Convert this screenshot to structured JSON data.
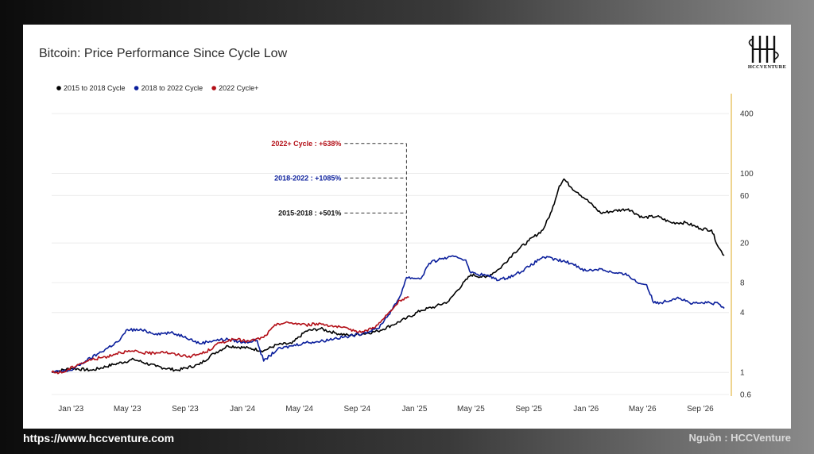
{
  "chart_data": {
    "type": "line",
    "title": "Bitcoin: Price Performance Since Cycle Low",
    "y_scale": "log",
    "ylim": [
      0.6,
      600
    ],
    "y_ticks": [
      {
        "value": 0.6,
        "label": "0.6"
      },
      {
        "value": 1,
        "label": "1"
      },
      {
        "value": 4,
        "label": "4"
      },
      {
        "value": 8,
        "label": "8"
      },
      {
        "value": 20,
        "label": "20"
      },
      {
        "value": 60,
        "label": "60"
      },
      {
        "value": 100,
        "label": "100"
      },
      {
        "value": 400,
        "label": "400"
      }
    ],
    "xlim": [
      "2022-11-21",
      "2026-11-01"
    ],
    "x_ticks": [
      "Jan '23",
      "May '23",
      "Sep '23",
      "Jan '24",
      "May '24",
      "Sep '24",
      "Jan '25",
      "May '25",
      "Sep '25",
      "Jan '26",
      "May '26",
      "Sep '26"
    ],
    "x_tick_dates": [
      "2023-01-01",
      "2023-05-01",
      "2023-09-01",
      "2024-01-01",
      "2024-05-01",
      "2024-09-01",
      "2025-01-01",
      "2025-05-01",
      "2025-09-01",
      "2026-01-01",
      "2026-05-01",
      "2026-09-01"
    ],
    "grid": true,
    "legend_position": "top-left",
    "series": [
      {
        "name": "2015 to 2018 Cycle",
        "color": "#000000",
        "points": [
          [
            "2022-11-21",
            1.0
          ],
          [
            "2023-01-01",
            1.1
          ],
          [
            "2023-02-15",
            1.05
          ],
          [
            "2023-04-01",
            1.2
          ],
          [
            "2023-05-15",
            1.35
          ],
          [
            "2023-07-01",
            1.15
          ],
          [
            "2023-08-15",
            1.05
          ],
          [
            "2023-10-01",
            1.2
          ],
          [
            "2023-11-01",
            1.55
          ],
          [
            "2023-12-01",
            1.85
          ],
          [
            "2024-01-15",
            1.75
          ],
          [
            "2024-02-15",
            1.65
          ],
          [
            "2024-03-15",
            1.9
          ],
          [
            "2024-04-15",
            1.95
          ],
          [
            "2024-05-15",
            2.6
          ],
          [
            "2024-06-15",
            2.75
          ],
          [
            "2024-07-15",
            2.5
          ],
          [
            "2024-08-15",
            2.35
          ],
          [
            "2024-09-15",
            2.45
          ],
          [
            "2024-10-15",
            2.6
          ],
          [
            "2024-11-15",
            3.0
          ],
          [
            "2024-12-15",
            3.5
          ],
          [
            "2025-01-15",
            4.2
          ],
          [
            "2025-02-15",
            4.6
          ],
          [
            "2025-03-15",
            5.2
          ],
          [
            "2025-04-01",
            6.6
          ],
          [
            "2025-05-01",
            9.6
          ],
          [
            "2025-06-01",
            9.0
          ],
          [
            "2025-07-01",
            11.0
          ],
          [
            "2025-08-01",
            16.0
          ],
          [
            "2025-09-01",
            21.0
          ],
          [
            "2025-10-01",
            27.0
          ],
          [
            "2025-10-20",
            42.0
          ],
          [
            "2025-11-05",
            75.0
          ],
          [
            "2025-11-15",
            88.0
          ],
          [
            "2025-12-01",
            72.0
          ],
          [
            "2025-12-15",
            64.0
          ],
          [
            "2026-01-01",
            55.0
          ],
          [
            "2026-02-01",
            40.0
          ],
          [
            "2026-03-01",
            42.0
          ],
          [
            "2026-04-01",
            44.0
          ],
          [
            "2026-05-01",
            36.0
          ],
          [
            "2026-06-01",
            37.0
          ],
          [
            "2026-07-01",
            32.0
          ],
          [
            "2026-08-01",
            32.0
          ],
          [
            "2026-09-01",
            28.0
          ],
          [
            "2026-09-25",
            27.0
          ],
          [
            "2026-10-10",
            18.0
          ],
          [
            "2026-10-22",
            15.0
          ]
        ]
      },
      {
        "name": "2018 to 2022 Cycle",
        "color": "#0b1f9c",
        "points": [
          [
            "2022-11-21",
            1.0
          ],
          [
            "2023-01-01",
            1.05
          ],
          [
            "2023-02-01",
            1.3
          ],
          [
            "2023-03-01",
            1.55
          ],
          [
            "2023-04-15",
            2.1
          ],
          [
            "2023-05-01",
            2.7
          ],
          [
            "2023-06-01",
            2.65
          ],
          [
            "2023-07-01",
            2.45
          ],
          [
            "2023-08-01",
            2.5
          ],
          [
            "2023-09-01",
            2.3
          ],
          [
            "2023-10-01",
            1.95
          ],
          [
            "2023-11-01",
            2.1
          ],
          [
            "2023-12-01",
            2.15
          ],
          [
            "2024-01-01",
            2.0
          ],
          [
            "2024-02-01",
            2.1
          ],
          [
            "2024-02-15",
            1.3
          ],
          [
            "2024-03-15",
            1.7
          ],
          [
            "2024-04-15",
            1.85
          ],
          [
            "2024-05-15",
            2.0
          ],
          [
            "2024-06-15",
            2.05
          ],
          [
            "2024-07-15",
            2.2
          ],
          [
            "2024-08-15",
            2.3
          ],
          [
            "2024-09-15",
            2.5
          ],
          [
            "2024-10-15",
            2.75
          ],
          [
            "2024-11-15",
            4.3
          ],
          [
            "2024-12-01",
            5.8
          ],
          [
            "2024-12-15",
            9.0
          ],
          [
            "2025-01-15",
            8.8
          ],
          [
            "2025-02-01",
            12.5
          ],
          [
            "2025-03-01",
            14.0
          ],
          [
            "2025-04-01",
            14.5
          ],
          [
            "2025-04-20",
            13.5
          ],
          [
            "2025-05-01",
            10.0
          ],
          [
            "2025-06-01",
            9.5
          ],
          [
            "2025-07-01",
            8.5
          ],
          [
            "2025-08-01",
            9.5
          ],
          [
            "2025-09-01",
            11.5
          ],
          [
            "2025-10-01",
            14.5
          ],
          [
            "2025-11-01",
            13.5
          ],
          [
            "2025-12-01",
            12.5
          ],
          [
            "2026-01-01",
            10.5
          ],
          [
            "2026-02-01",
            11.0
          ],
          [
            "2026-03-01",
            10.0
          ],
          [
            "2026-04-01",
            9.5
          ],
          [
            "2026-04-20",
            8.0
          ],
          [
            "2026-05-10",
            7.6
          ],
          [
            "2026-05-25",
            5.0
          ],
          [
            "2026-06-15",
            5.1
          ],
          [
            "2026-07-15",
            5.7
          ],
          [
            "2026-08-15",
            4.9
          ],
          [
            "2026-09-15",
            5.0
          ],
          [
            "2026-10-10",
            4.9
          ],
          [
            "2026-10-22",
            4.4
          ]
        ]
      },
      {
        "name": "2022 Cycle+",
        "color": "#b30f17",
        "points": [
          [
            "2022-11-21",
            1.0
          ],
          [
            "2022-12-15",
            1.0
          ],
          [
            "2023-01-15",
            1.2
          ],
          [
            "2023-02-15",
            1.35
          ],
          [
            "2023-03-20",
            1.45
          ],
          [
            "2023-04-15",
            1.6
          ],
          [
            "2023-05-15",
            1.62
          ],
          [
            "2023-06-15",
            1.55
          ],
          [
            "2023-07-15",
            1.62
          ],
          [
            "2023-08-15",
            1.5
          ],
          [
            "2023-09-15",
            1.45
          ],
          [
            "2023-10-15",
            1.6
          ],
          [
            "2023-11-15",
            2.0
          ],
          [
            "2023-12-15",
            2.15
          ],
          [
            "2024-01-15",
            2.05
          ],
          [
            "2024-02-15",
            2.25
          ],
          [
            "2024-03-15",
            3.1
          ],
          [
            "2024-04-15",
            3.15
          ],
          [
            "2024-05-15",
            3.0
          ],
          [
            "2024-06-15",
            3.1
          ],
          [
            "2024-07-15",
            2.9
          ],
          [
            "2024-08-15",
            2.7
          ],
          [
            "2024-09-15",
            2.55
          ],
          [
            "2024-10-15",
            3.0
          ],
          [
            "2024-11-15",
            4.3
          ],
          [
            "2024-12-01",
            5.3
          ],
          [
            "2024-12-20",
            5.7
          ]
        ]
      }
    ],
    "annotations": [
      {
        "text": "2022+ Cycle : +638%",
        "color": "#b30f17",
        "value": 200
      },
      {
        "text": "2018-2022 : +1085%",
        "color": "#0b1f9c",
        "value": 90
      },
      {
        "text": "2015-2018 : +501%",
        "color": "#111111",
        "value": 40
      }
    ],
    "annotation_date": "2024-12-15"
  },
  "footer": {
    "website": "https://www.hccventure.com",
    "source": "Nguồn : HCCVenture"
  },
  "logo": {
    "text": "HCCVENTURE"
  }
}
